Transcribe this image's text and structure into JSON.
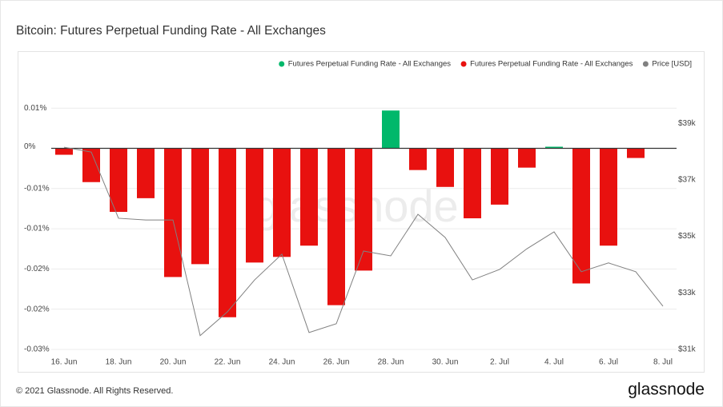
{
  "chart_data": {
    "type": "bar",
    "title": "Bitcoin: Futures Perpetual Funding Rate - All Exchanges",
    "watermark": "glassnode",
    "categories": [
      "16. Jun",
      null,
      "18. Jun",
      null,
      "20. Jun",
      null,
      "22. Jun",
      null,
      "24. Jun",
      null,
      "26. Jun",
      null,
      "28. Jun",
      null,
      "30. Jun",
      null,
      "2. Jul",
      null,
      "4. Jul",
      null,
      "6. Jul",
      null,
      "8. Jul"
    ],
    "series": [
      {
        "name": "Futures Perpetual Funding Rate - All Exchanges",
        "color": "#00b86b",
        "type": "bar",
        "values": [
          null,
          null,
          null,
          null,
          null,
          null,
          null,
          null,
          null,
          null,
          null,
          null,
          0.0047,
          null,
          null,
          null,
          null,
          null,
          0.0002,
          null,
          null,
          null,
          null
        ]
      },
      {
        "name": "Futures Perpetual Funding Rate - All Exchanges",
        "color": "#e8110f",
        "type": "bar",
        "values": [
          -0.0008,
          -0.0042,
          -0.0079,
          -0.0062,
          -0.016,
          -0.0144,
          -0.021,
          -0.0142,
          -0.0135,
          -0.0121,
          -0.0195,
          -0.0152,
          null,
          -0.0027,
          -0.0048,
          -0.0087,
          -0.007,
          -0.0024,
          null,
          -0.0168,
          -0.0121,
          -0.0012,
          null
        ]
      },
      {
        "name": "Price [USD]",
        "color": "#808080",
        "type": "line",
        "axis": "y2",
        "values": [
          38150,
          37980,
          35640,
          35580,
          35580,
          31490,
          32330,
          33460,
          34370,
          31600,
          31910,
          34480,
          34310,
          35780,
          34960,
          33460,
          33830,
          34560,
          35160,
          33750,
          34060,
          33750,
          32530
        ]
      }
    ],
    "ylim": [
      -0.0255,
      0.0085
    ],
    "yticks": [
      {
        "value": 0.005,
        "label": "0.01%"
      },
      {
        "value": 0,
        "label": "0%"
      },
      {
        "value": -0.005,
        "label": "-0.01%"
      },
      {
        "value": -0.01,
        "label": "-0.01%"
      },
      {
        "value": -0.015,
        "label": "-0.02%"
      },
      {
        "value": -0.02,
        "label": "-0.02%"
      },
      {
        "value": -0.025,
        "label": "-0.03%"
      }
    ],
    "y2lim": [
      30860,
      40530
    ],
    "y2ticks": [
      {
        "value": 39000,
        "label": "$39k"
      },
      {
        "value": 37000,
        "label": "$37k"
      },
      {
        "value": 35000,
        "label": "$35k"
      },
      {
        "value": 33000,
        "label": "$33k"
      },
      {
        "value": 31000,
        "label": "$31k"
      }
    ],
    "grid": true
  },
  "footer": {
    "copyright": "© 2021 Glassnode. All Rights Reserved.",
    "logo": "glassnode"
  }
}
